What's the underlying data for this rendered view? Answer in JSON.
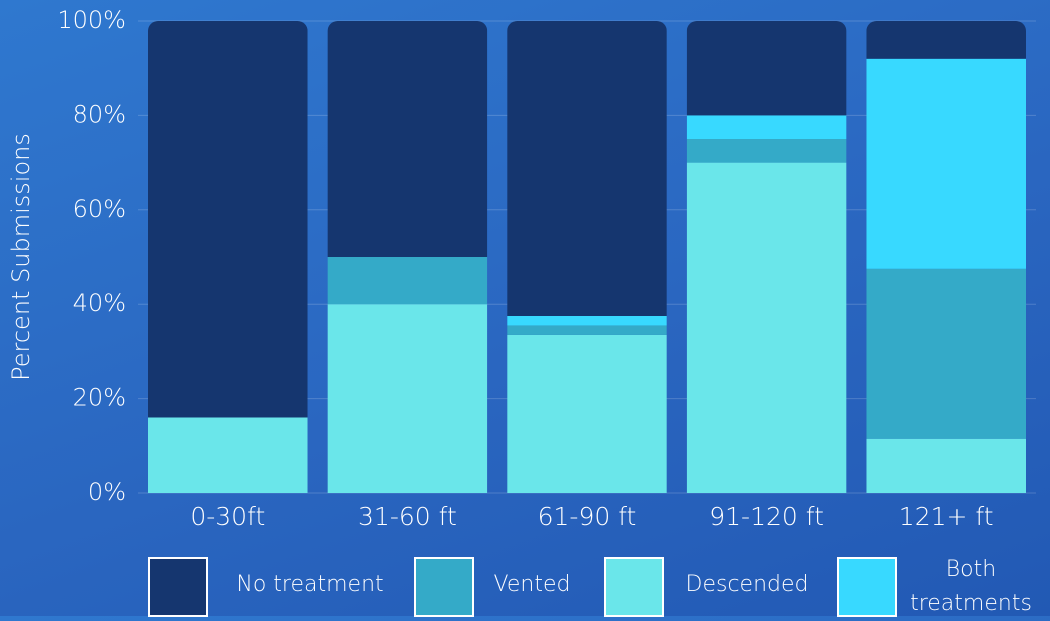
{
  "chart_data": {
    "type": "stacked_bar",
    "y_label": "Percent Submissions",
    "categories": [
      "0-30ft",
      "31-60 ft",
      "61-90 ft",
      "91-120 ft",
      "121+ ft"
    ],
    "series": [
      {
        "name": "No treatment",
        "color": "#15366f",
        "values": [
          84,
          50,
          62.5,
          20,
          8
        ]
      },
      {
        "name": "Vented",
        "color": "#34aac8",
        "values": [
          0,
          10,
          2,
          5,
          36
        ]
      },
      {
        "name": "Descended",
        "color": "#6ae6ea",
        "values": [
          16,
          40,
          33.5,
          70,
          11.5
        ]
      },
      {
        "name": "Both treatments",
        "color": "#38d9ff",
        "values": [
          0,
          0,
          2,
          5,
          44.5
        ]
      }
    ],
    "ylim": [
      0,
      100
    ],
    "yticks": [
      {
        "value": 0,
        "label": "0%"
      },
      {
        "value": 20,
        "label": "20%"
      },
      {
        "value": 40,
        "label": "40%"
      },
      {
        "value": 60,
        "label": "60%"
      },
      {
        "value": 80,
        "label": "80%"
      },
      {
        "value": 100,
        "label": "100%"
      }
    ],
    "grid": true
  }
}
